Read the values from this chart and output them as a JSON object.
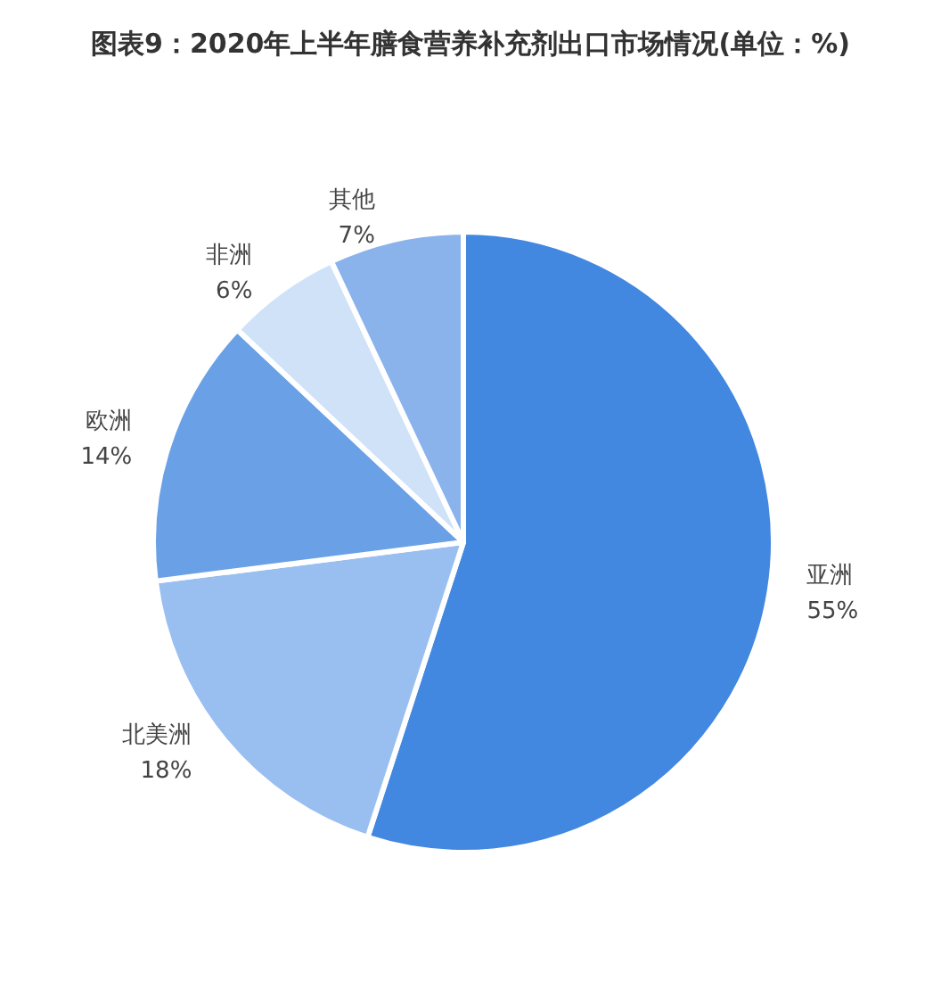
{
  "chart_data": {
    "type": "pie",
    "title": "图表9：2020年上半年膳食营养补充剂出口市场情况(单位：%)",
    "categories": [
      "亚洲",
      "北美洲",
      "欧洲",
      "非洲",
      "其他"
    ],
    "values": [
      55,
      18,
      14,
      6,
      7
    ],
    "value_labels": [
      "55%",
      "18%",
      "14%",
      "6%",
      "7%"
    ],
    "colors": [
      "#4287e0",
      "#99bff0",
      "#6aa1e6",
      "#cfe2f8",
      "#8ab3ec"
    ]
  }
}
